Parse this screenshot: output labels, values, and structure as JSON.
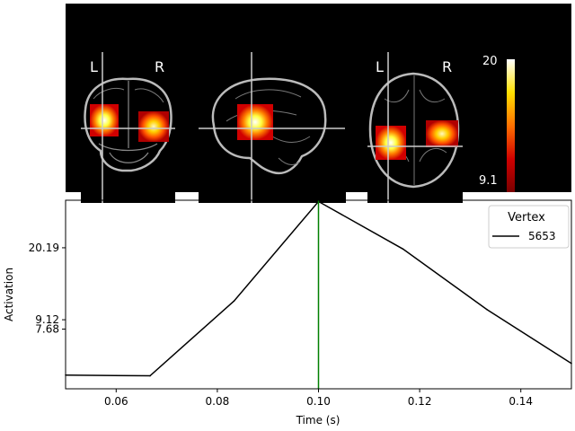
{
  "brain_views": {
    "coronal": {
      "left_label": "L",
      "right_label": "R"
    },
    "axial": {
      "left_label": "L",
      "right_label": "R"
    }
  },
  "colorbar": {
    "max_label": "20",
    "min_label": "9.1",
    "colormap": "hot"
  },
  "chart_data": {
    "type": "line",
    "xlabel": "Time (s)",
    "ylabel": "Activation",
    "xlim": [
      0.05,
      0.15
    ],
    "ylim": [
      -1.5,
      27.5
    ],
    "x_ticks": [
      "0.06",
      "0.08",
      "0.10",
      "0.12",
      "0.14"
    ],
    "y_ticks": [
      "7.68",
      "9.12",
      "20.19"
    ],
    "series": [
      {
        "name": "5653",
        "color": "#000000",
        "x": [
          0.05,
          0.0667,
          0.0833,
          0.1,
          0.1167,
          0.1333,
          0.15
        ],
        "y": [
          0.6,
          0.5,
          12.0,
          27.3,
          20.0,
          10.7,
          2.4
        ]
      }
    ],
    "vline": {
      "x": 0.1,
      "color": "#008000"
    },
    "legend": {
      "title": "Vertex",
      "location": "upper right"
    }
  }
}
